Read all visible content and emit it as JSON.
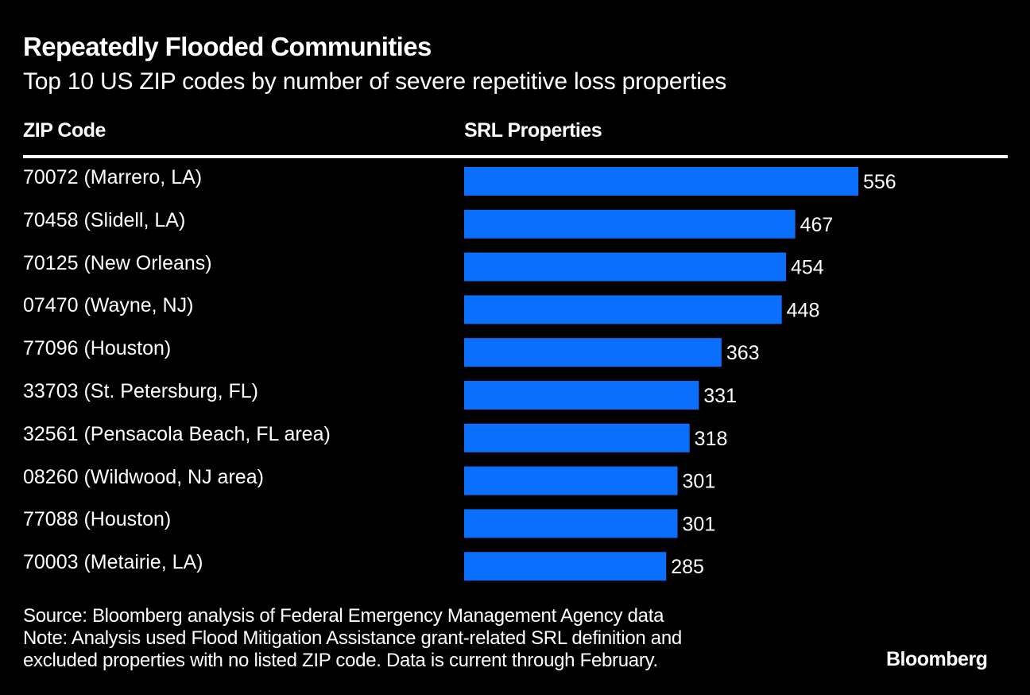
{
  "chart_data": {
    "type": "bar",
    "orientation": "horizontal",
    "title": "Repeatedly Flooded Communities",
    "subtitle": "Top 10 US ZIP codes by number of severe repetitive loss properties",
    "columns": {
      "label_header": "ZIP Code",
      "value_header": "SRL Properties"
    },
    "categories": [
      "70072 (Marrero, LA)",
      "70458 (Slidell, LA)",
      "70125 (New Orleans)",
      "07470 (Wayne, NJ)",
      "77096 (Houston)",
      "33703 (St. Petersburg, FL)",
      "32561 (Pensacola Beach, FL area)",
      "08260 (Wildwood, NJ area)",
      "77088 (Houston)",
      "70003 (Metairie, LA)"
    ],
    "values": [
      556,
      467,
      454,
      448,
      363,
      331,
      318,
      301,
      301,
      285
    ],
    "data_labels": [
      "556",
      "467",
      "454",
      "448",
      "363",
      "331",
      "318",
      "301",
      "301",
      "285"
    ],
    "xlabel": "",
    "ylabel": "",
    "xlim": [
      0,
      556
    ],
    "grid": false,
    "legend": "none",
    "bar_color": "#0a6ffc",
    "label_color": "#ffffff",
    "background_color": "#000000"
  },
  "footer": {
    "source": "Source: Bloomberg analysis of Federal Emergency Management Agency data",
    "note_line1": "Note: Analysis used Flood Mitigation Assistance grant-related SRL definition and",
    "note_line2": "excluded properties with no listed ZIP code. Data is current through February."
  },
  "brand": "Bloomberg"
}
